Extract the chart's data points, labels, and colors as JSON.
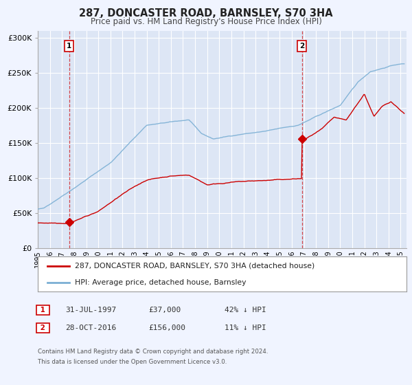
{
  "title": "287, DONCASTER ROAD, BARNSLEY, S70 3HA",
  "subtitle": "Price paid vs. HM Land Registry's House Price Index (HPI)",
  "background_color": "#f0f4ff",
  "plot_bg_color": "#dde6f5",
  "grid_color": "#ffffff",
  "ylim": [
    0,
    310000
  ],
  "xlim_start": 1995.0,
  "xlim_end": 2025.5,
  "yticks": [
    0,
    50000,
    100000,
    150000,
    200000,
    250000,
    300000
  ],
  "ytick_labels": [
    "£0",
    "£50K",
    "£100K",
    "£150K",
    "£200K",
    "£250K",
    "£300K"
  ],
  "xtick_years": [
    1995,
    1996,
    1997,
    1998,
    1999,
    2000,
    2001,
    2002,
    2003,
    2004,
    2005,
    2006,
    2007,
    2008,
    2009,
    2010,
    2011,
    2012,
    2013,
    2014,
    2015,
    2016,
    2017,
    2018,
    2019,
    2020,
    2021,
    2022,
    2023,
    2024,
    2025
  ],
  "sale1_x": 1997.58,
  "sale1_y": 37000,
  "sale2_x": 2016.83,
  "sale2_y": 156000,
  "sale_color": "#cc0000",
  "hpi_color": "#7bafd4",
  "line1_label": "287, DONCASTER ROAD, BARNSLEY, S70 3HA (detached house)",
  "line2_label": "HPI: Average price, detached house, Barnsley",
  "ann1_date": "31-JUL-1997",
  "ann1_price": "£37,000",
  "ann1_hpi": "42% ↓ HPI",
  "ann2_date": "28-OCT-2016",
  "ann2_price": "£156,000",
  "ann2_hpi": "11% ↓ HPI",
  "footer1": "Contains HM Land Registry data © Crown copyright and database right 2024.",
  "footer2": "This data is licensed under the Open Government Licence v3.0."
}
